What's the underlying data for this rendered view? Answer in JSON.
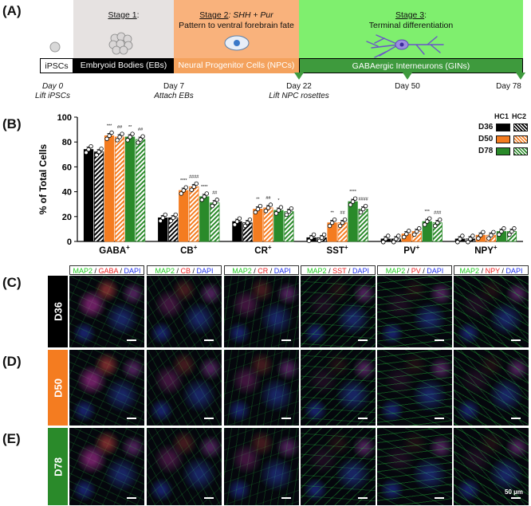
{
  "panel_labels": {
    "a": "(A)",
    "b": "(B)",
    "c": "(C)",
    "d": "(D)",
    "e": "(E)"
  },
  "timeline": {
    "stage1_title": "Stage 1",
    "stage1_colon": ":",
    "stage2_title": "Stage 2",
    "stage2_suffix": ": SHH + Pur",
    "stage2_desc": "Pattern to ventral forebrain fate",
    "stage3_title": "Stage 3",
    "stage3_colon": ":",
    "stage3_desc": "Terminal differentiation",
    "seg_ipsc": "iPSCs",
    "seg_eb": "Embryoid Bodies (EBs)",
    "seg_npc": "Neural Progenitor Cells (NPCs)",
    "seg_gin": "GABAergic Interneurons (GINs)",
    "day0": "Day 0",
    "day0_note": "Lift iPSCs",
    "day7": "Day 7",
    "day7_note": "Attach EBs",
    "day22": "Day 22",
    "day22_note": "Lift NPC rosettes",
    "day50": "Day 50",
    "day78": "Day 78",
    "colors": {
      "stage1": "#e6e2e1",
      "stage2": "#f9b27c",
      "stage3": "#7fef6e",
      "npc_bar": "#f4a25d",
      "gin_bar": "#3e9a3d",
      "eb_bar": "#000000"
    }
  },
  "chart_data": {
    "type": "bar",
    "ylabel": "% of Total Cells",
    "ylim": [
      0,
      100
    ],
    "yticks": [
      "0",
      "20",
      "40",
      "60",
      "80",
      "100"
    ],
    "categories": [
      "GABA",
      "CB",
      "CR",
      "SST",
      "PV",
      "NPY"
    ],
    "category_sup": "+",
    "legend": {
      "hc1": "HC1",
      "hc2": "HC2",
      "rows": [
        "D36",
        "D50",
        "D78"
      ]
    },
    "series": [
      {
        "name": "HC1 D36",
        "color": "#000000",
        "hatched": false,
        "values": [
          74,
          19,
          16,
          3,
          2,
          2
        ]
      },
      {
        "name": "HC2 D36",
        "color": "#000000",
        "hatched": true,
        "values": [
          72,
          19,
          15,
          3,
          2,
          2
        ]
      },
      {
        "name": "HC1 D50",
        "color": "#f47c20",
        "hatched": false,
        "values": [
          85,
          41,
          26,
          15,
          6,
          5
        ]
      },
      {
        "name": "HC2 D50",
        "color": "#f47c20",
        "hatched": true,
        "values": [
          84,
          44,
          27,
          15,
          8,
          5
        ]
      },
      {
        "name": "HC1 D78",
        "color": "#2a8a2a",
        "hatched": false,
        "values": [
          84,
          36,
          25,
          32,
          16,
          8
        ]
      },
      {
        "name": "HC2 D78",
        "color": "#2a8a2a",
        "hatched": true,
        "values": [
          82,
          31,
          24,
          26,
          15,
          8
        ]
      }
    ],
    "significance": [
      {
        "category": 0,
        "series": 2,
        "label": "***"
      },
      {
        "category": 0,
        "series": 3,
        "label": "##"
      },
      {
        "category": 0,
        "series": 4,
        "label": "**"
      },
      {
        "category": 0,
        "series": 5,
        "label": "##"
      },
      {
        "category": 1,
        "series": 2,
        "label": "****"
      },
      {
        "category": 1,
        "series": 3,
        "label": "####"
      },
      {
        "category": 1,
        "series": 4,
        "label": "****"
      },
      {
        "category": 1,
        "series": 5,
        "label": "##"
      },
      {
        "category": 2,
        "series": 2,
        "label": "**"
      },
      {
        "category": 2,
        "series": 3,
        "label": "##"
      },
      {
        "category": 2,
        "series": 4,
        "label": "*"
      },
      {
        "category": 3,
        "series": 2,
        "label": "**"
      },
      {
        "category": 3,
        "series": 3,
        "label": "##"
      },
      {
        "category": 3,
        "series": 4,
        "label": "****"
      },
      {
        "category": 3,
        "series": 5,
        "label": "####"
      },
      {
        "category": 4,
        "series": 4,
        "label": "***"
      },
      {
        "category": 4,
        "series": 5,
        "label": "###"
      }
    ]
  },
  "micrographs": {
    "headers": [
      {
        "marker_a": "MAP2",
        "sep1": " / ",
        "marker_b": "GABA",
        "sep2": " / ",
        "marker_c": "DAPI"
      },
      {
        "marker_a": "MAP2",
        "sep1": " / ",
        "marker_b": "CB",
        "sep2": " / ",
        "marker_c": "DAPI"
      },
      {
        "marker_a": "MAP2",
        "sep1": " / ",
        "marker_b": "CR",
        "sep2": " / ",
        "marker_c": "DAPI"
      },
      {
        "marker_a": "MAP2",
        "sep1": " / ",
        "marker_b": "SST",
        "sep2": " / ",
        "marker_c": "DAPI"
      },
      {
        "marker_a": "MAP2",
        "sep1": " / ",
        "marker_b": "PV",
        "sep2": " / ",
        "marker_c": "DAPI"
      },
      {
        "marker_a": "MAP2",
        "sep1": " / ",
        "marker_b": "NPY",
        "sep2": " / ",
        "marker_c": "DAPI"
      }
    ],
    "rows": [
      {
        "label": "D36",
        "color": "#000000"
      },
      {
        "label": "D50",
        "color": "#f47c20"
      },
      {
        "label": "D78",
        "color": "#2a8a2a"
      }
    ],
    "scale_label": "50 µm",
    "marker_colors": {
      "map2": "#22cc22",
      "red": "#ee2222",
      "dapi": "#2233ee"
    }
  }
}
